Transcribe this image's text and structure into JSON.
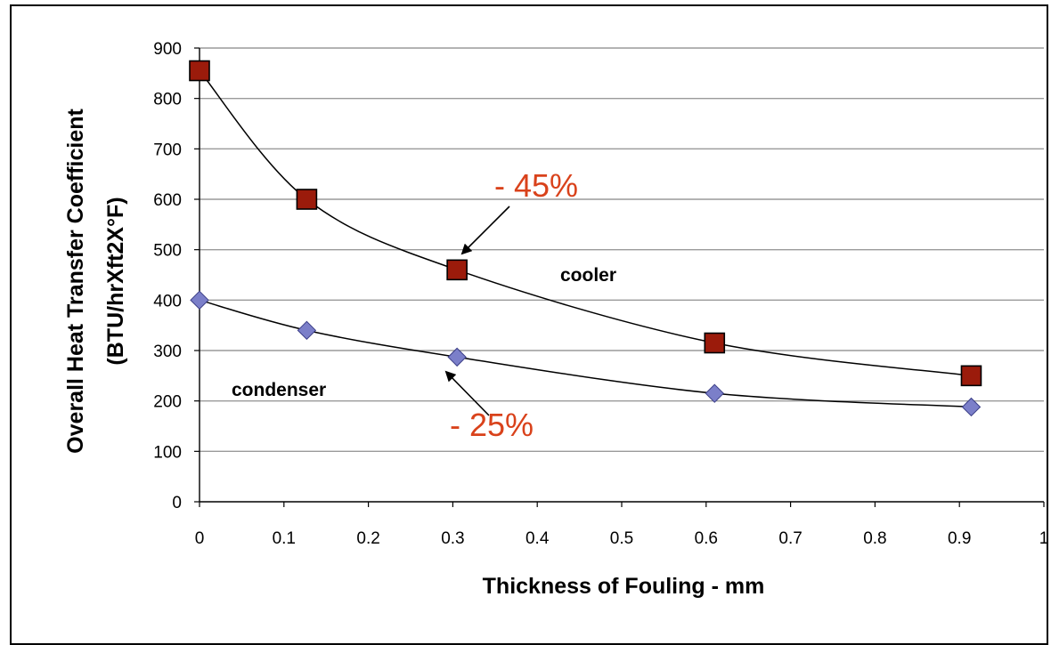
{
  "chart_data": {
    "type": "scatter",
    "title": "",
    "xlabel": "Thickness of Fouling - mm",
    "ylabel_line1": "Overall Heat Transfer Coefficient",
    "ylabel_line2": "(BTU/hrXft2X°F)",
    "xlim": [
      0,
      1
    ],
    "ylim": [
      0,
      900
    ],
    "x_ticks": [
      "0",
      "0.1",
      "0.2",
      "0.3",
      "0.4",
      "0.5",
      "0.6",
      "0.7",
      "0.8",
      "0.9",
      "1"
    ],
    "y_ticks": [
      "0",
      "100",
      "200",
      "300",
      "400",
      "500",
      "600",
      "700",
      "800",
      "900"
    ],
    "grid": "horizontal",
    "series": [
      {
        "name": "cooler",
        "marker": "square",
        "color": "#9b1b0b",
        "x": [
          0,
          0.127,
          0.305,
          0.61,
          0.914
        ],
        "y": [
          855,
          600,
          460,
          315,
          250
        ]
      },
      {
        "name": "condenser",
        "marker": "diamond",
        "color": "#7b7fc9",
        "x": [
          0,
          0.127,
          0.305,
          0.61,
          0.914
        ],
        "y": [
          400,
          340,
          287,
          215,
          188
        ]
      }
    ],
    "annotations": [
      {
        "text": "- 45%",
        "color": "#d9421b"
      },
      {
        "text": "- 25%",
        "color": "#d9421b"
      }
    ]
  }
}
